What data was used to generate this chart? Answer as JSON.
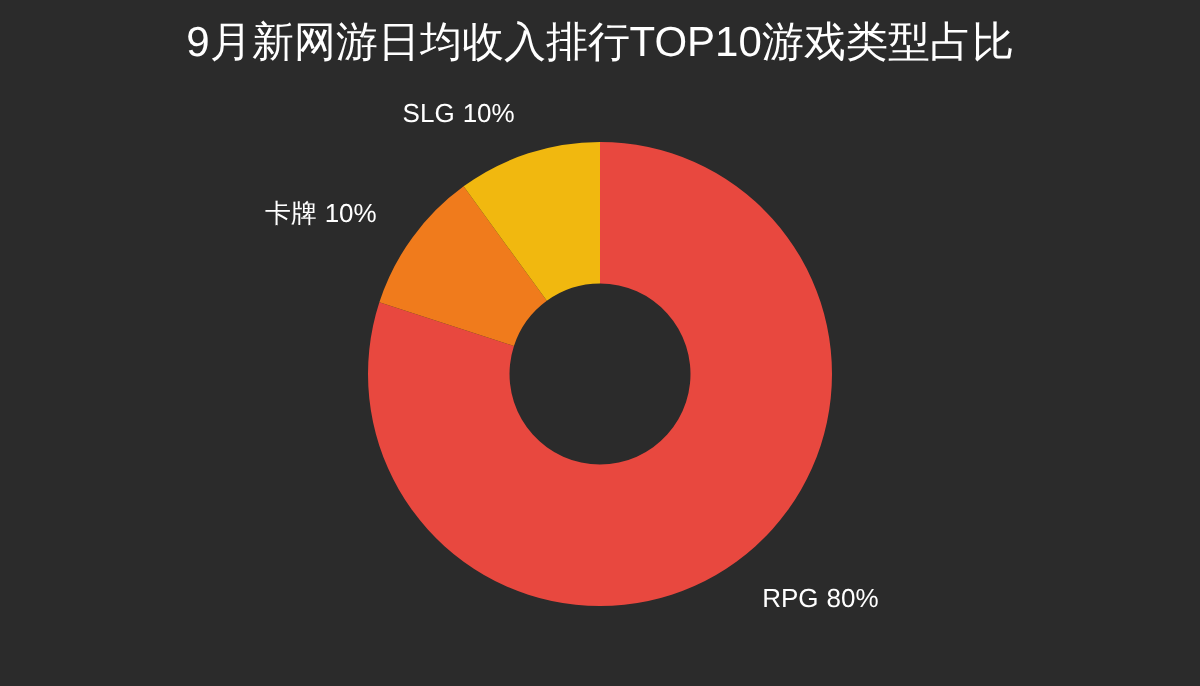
{
  "chart_data": {
    "type": "donut",
    "title": "9月新网游日均收入排行TOP10游戏类型占比",
    "categories": [
      "RPG",
      "卡牌",
      "SLG"
    ],
    "values": [
      80,
      10,
      10
    ],
    "colors": [
      "#e8483f",
      "#f07b1c",
      "#f1b80f"
    ],
    "value_labels": [
      "80%",
      "10%",
      "10%"
    ],
    "legend": false
  }
}
